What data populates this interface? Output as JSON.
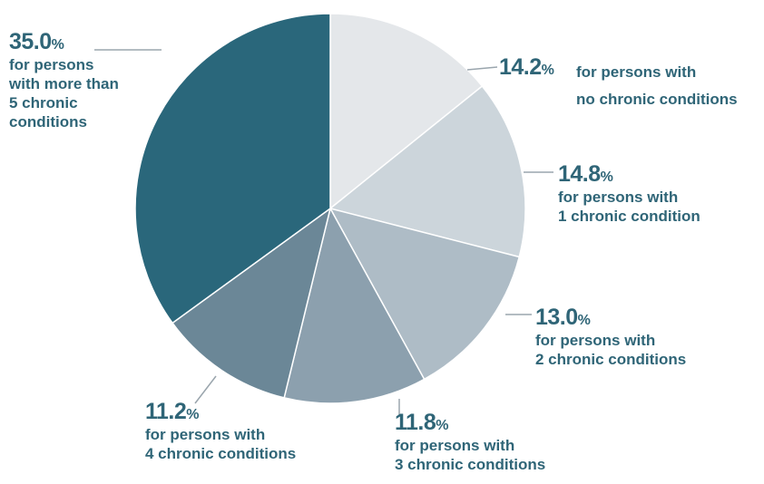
{
  "chart_data": {
    "type": "pie",
    "title": "",
    "unit": "%",
    "slices": [
      {
        "label": "for persons with no chronic conditions",
        "value": 14.2,
        "value_text": "14.2",
        "desc": "for persons with\nno chronic conditions",
        "color": "#e4e7ea"
      },
      {
        "label": "for persons with 1 chronic condition",
        "value": 14.8,
        "value_text": "14.8",
        "desc": "for persons with\n1 chronic condition",
        "color": "#ccd5db"
      },
      {
        "label": "for persons with 2 chronic conditions",
        "value": 13.0,
        "value_text": "13.0",
        "desc": "for persons with\n2 chronic conditions",
        "color": "#aebcc6"
      },
      {
        "label": "for persons with 3 chronic conditions",
        "value": 11.8,
        "value_text": "11.8",
        "desc": "for persons with\n3 chronic conditions",
        "color": "#8ca0ae"
      },
      {
        "label": "for persons with 4 chronic conditions",
        "value": 11.2,
        "value_text": "11.2",
        "desc": "for persons with\n4 chronic conditions",
        "color": "#6b8797"
      },
      {
        "label": "for persons with more than 5 chronic conditions",
        "value": 35.0,
        "value_text": "35.0",
        "desc": "for persons\nwith more than\n5 chronic\nconditions",
        "color": "#2a677b"
      }
    ],
    "start_angle_deg": 0,
    "direction": "clockwise",
    "label_color": "#2f6577",
    "leader_color": "#9aa5ad"
  }
}
